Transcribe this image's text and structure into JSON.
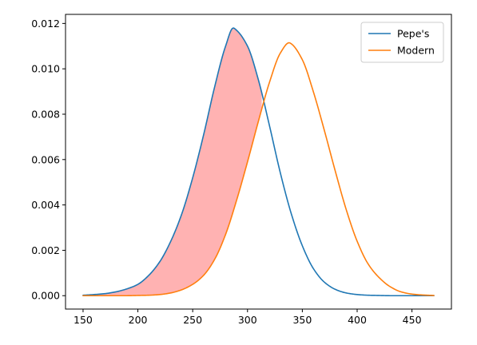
{
  "chart_data": {
    "type": "line",
    "title": "",
    "xlabel": "",
    "ylabel": "",
    "xlim": [
      134,
      486
    ],
    "ylim": [
      -0.00059,
      0.0124
    ],
    "xticks": [
      150,
      200,
      250,
      300,
      350,
      400,
      450
    ],
    "xtick_labels": [
      "150",
      "200",
      "250",
      "300",
      "350",
      "400",
      "450"
    ],
    "yticks": [
      0.0,
      0.002,
      0.004,
      0.006,
      0.008,
      0.01,
      0.012
    ],
    "ytick_labels": [
      "0.000",
      "0.002",
      "0.004",
      "0.006",
      "0.008",
      "0.010",
      "0.012"
    ],
    "grid": false,
    "legend_position": "top-right",
    "series": [
      {
        "name": "Pepe's",
        "color": "#1f77b4",
        "x": [
          150,
          160,
          170,
          180,
          190,
          200,
          210,
          220,
          230,
          240,
          250,
          260,
          270,
          280,
          287,
          290,
          300,
          310,
          320,
          330,
          340,
          350,
          360,
          370,
          380,
          390,
          400,
          410,
          420,
          430,
          440,
          450,
          460,
          470
        ],
        "y": [
          2e-05,
          5e-05,
          9e-05,
          0.00017,
          0.0003,
          0.0005,
          0.0009,
          0.0015,
          0.0024,
          0.0036,
          0.0052,
          0.0071,
          0.0092,
          0.011,
          0.0118,
          0.0117,
          0.011,
          0.0095,
          0.0075,
          0.0054,
          0.0036,
          0.0022,
          0.0012,
          0.0006,
          0.00028,
          0.00012,
          5e-05,
          2e-05,
          1e-05,
          0,
          0,
          0,
          0,
          0
        ]
      },
      {
        "name": "Modern",
        "color": "#ff7f0e",
        "x": [
          150,
          160,
          170,
          180,
          190,
          200,
          210,
          220,
          230,
          240,
          250,
          260,
          270,
          280,
          290,
          300,
          310,
          320,
          330,
          338,
          340,
          350,
          360,
          370,
          380,
          390,
          400,
          410,
          420,
          430,
          440,
          450,
          460,
          470
        ],
        "y": [
          0,
          0,
          0,
          0,
          0,
          1e-05,
          2e-05,
          5e-05,
          0.00012,
          0.00026,
          0.0005,
          0.0009,
          0.0016,
          0.0027,
          0.0042,
          0.0059,
          0.0077,
          0.0094,
          0.0107,
          0.01115,
          0.0111,
          0.0104,
          0.009,
          0.0073,
          0.0055,
          0.0038,
          0.0024,
          0.0014,
          0.0008,
          0.0004,
          0.00017,
          7e-05,
          3e-05,
          1e-05
        ]
      }
    ],
    "fill": {
      "between": [
        "Pepe's",
        "Modern"
      ],
      "x_range": [
        150,
        313
      ],
      "color": "#ff0000",
      "alpha": 0.3
    }
  }
}
